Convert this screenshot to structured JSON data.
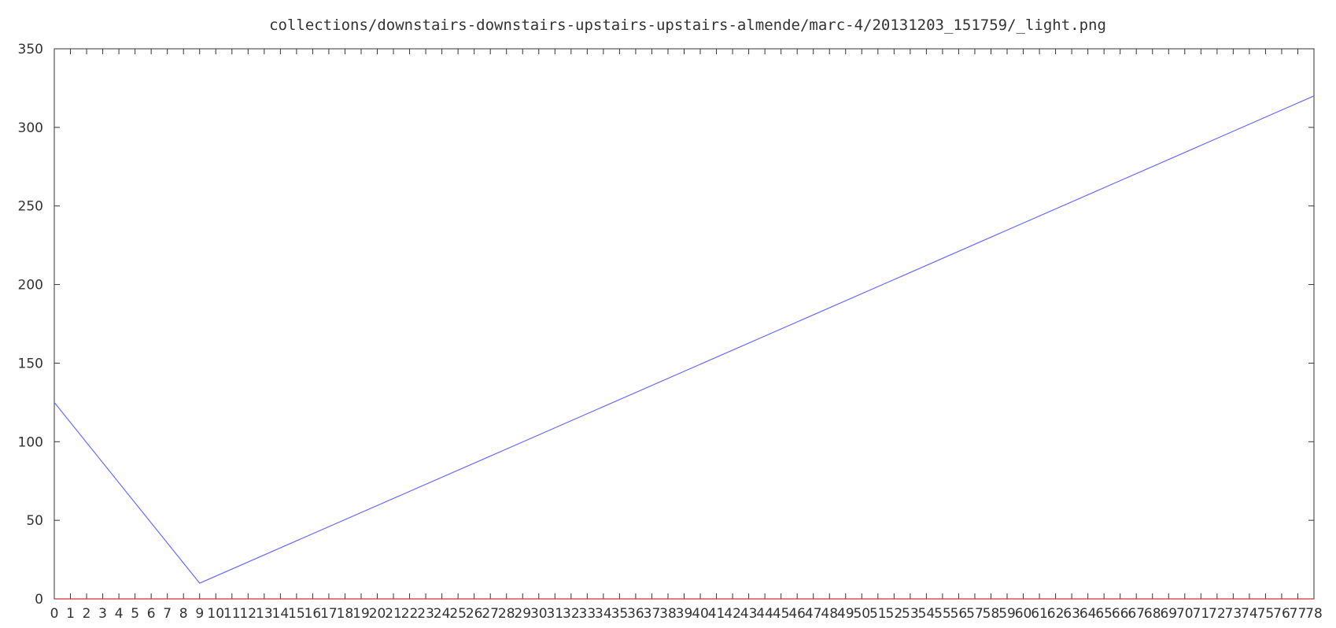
{
  "chart_data": {
    "type": "line",
    "title": "collections/downstairs-downstairs-upstairs-upstairs-almende/marc-4/20131203_151759/_light.png",
    "xlabel": "",
    "ylabel": "",
    "xlim": [
      0,
      78
    ],
    "ylim": [
      0,
      350
    ],
    "x_ticks": [
      0,
      1,
      2,
      3,
      4,
      5,
      6,
      7,
      8,
      9,
      10,
      11,
      12,
      13,
      14,
      15,
      16,
      17,
      18,
      19,
      20,
      21,
      22,
      23,
      24,
      25,
      26,
      27,
      28,
      29,
      30,
      31,
      32,
      33,
      34,
      35,
      36,
      37,
      38,
      39,
      40,
      41,
      42,
      43,
      44,
      45,
      46,
      47,
      48,
      49,
      50,
      51,
      52,
      53,
      54,
      55,
      56,
      57,
      58,
      59,
      60,
      61,
      62,
      63,
      64,
      65,
      66,
      67,
      68,
      69,
      70,
      71,
      72,
      73,
      74,
      75,
      76,
      77,
      78
    ],
    "y_ticks": [
      0,
      50,
      100,
      150,
      200,
      250,
      300,
      350
    ],
    "grid": false,
    "series": [
      {
        "color": "#6b6bff",
        "points": [
          [
            0,
            125
          ],
          [
            9,
            10
          ],
          [
            78,
            320
          ]
        ]
      },
      {
        "color": "#cc3333",
        "points": [
          [
            0,
            0
          ],
          [
            78,
            0
          ]
        ]
      }
    ]
  }
}
